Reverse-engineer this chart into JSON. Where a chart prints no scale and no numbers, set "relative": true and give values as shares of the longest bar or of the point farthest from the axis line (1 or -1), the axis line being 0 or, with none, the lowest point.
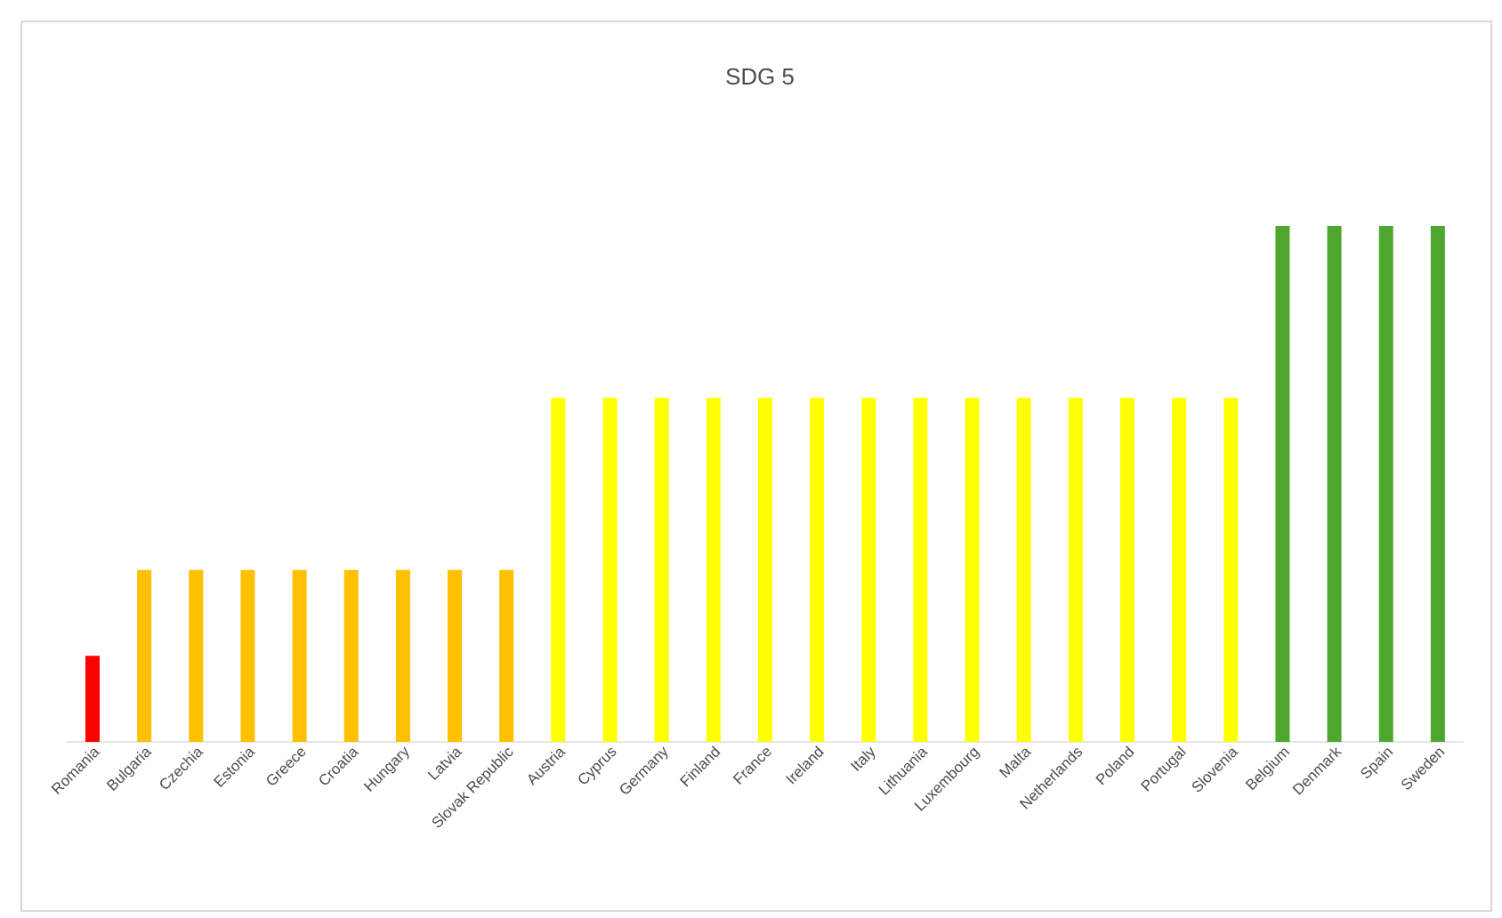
{
  "chart_data": {
    "type": "bar",
    "title": "SDG 5",
    "relative": true,
    "categories": [
      "Romania",
      "Bulgaria",
      "Czechia",
      "Estonia",
      "Greece",
      "Croatia",
      "Hungary",
      "Latvia",
      "Slovak Republic",
      "Austria",
      "Cyprus",
      "Germany",
      "Finland",
      "France",
      "Ireland",
      "Italy",
      "Lithuania",
      "Luxembourg",
      "Malta",
      "Netherlands",
      "Poland",
      "Portugal",
      "Slovenia",
      "Belgium",
      "Denmark",
      "Spain",
      "Sweden"
    ],
    "values": [
      0.167,
      0.333,
      0.333,
      0.333,
      0.333,
      0.333,
      0.333,
      0.333,
      0.333,
      0.667,
      0.667,
      0.667,
      0.667,
      0.667,
      0.667,
      0.667,
      0.667,
      0.667,
      0.667,
      0.667,
      0.667,
      0.667,
      0.667,
      1,
      1,
      1,
      1
    ],
    "colors": [
      "#ff0000",
      "#ffc000",
      "#ffc000",
      "#ffc000",
      "#ffc000",
      "#ffc000",
      "#ffc000",
      "#ffc000",
      "#ffc000",
      "#ffff00",
      "#ffff00",
      "#ffff00",
      "#ffff00",
      "#ffff00",
      "#ffff00",
      "#ffff00",
      "#ffff00",
      "#ffff00",
      "#ffff00",
      "#ffff00",
      "#ffff00",
      "#ffff00",
      "#ffff00",
      "#4ea72e",
      "#4ea72e",
      "#4ea72e",
      "#4ea72e"
    ]
  }
}
